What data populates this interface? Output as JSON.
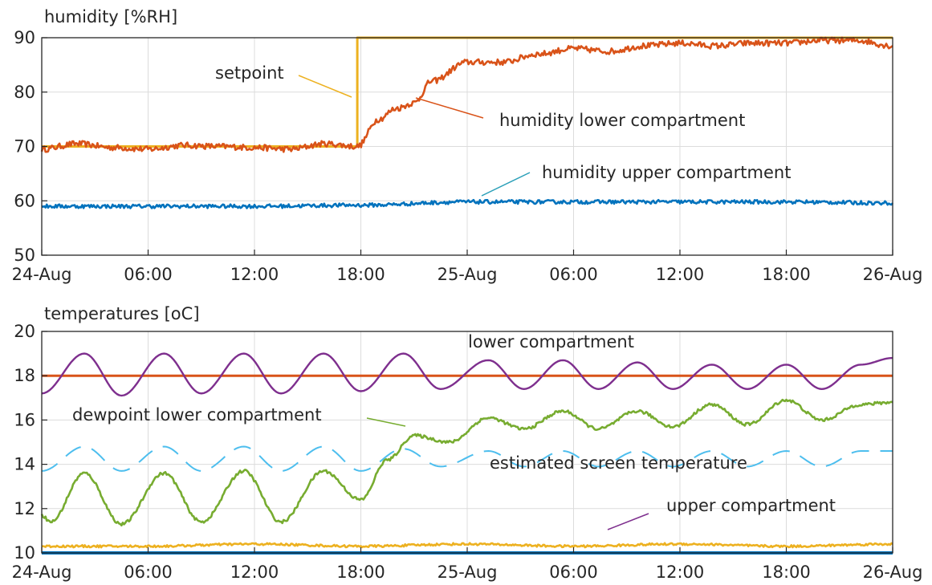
{
  "chart_data": [
    {
      "type": "line",
      "title": "humidity [%RH]",
      "xlabel": "",
      "ylabel": "",
      "x_tick_labels": [
        "24-Aug",
        "06:00",
        "12:00",
        "18:00",
        "25-Aug",
        "06:00",
        "12:00",
        "18:00",
        "26-Aug"
      ],
      "x_ticks_hours": [
        0,
        6,
        12,
        18,
        24,
        30,
        36,
        42,
        48
      ],
      "xlim_hours": [
        0,
        48
      ],
      "ylim": [
        50,
        90
      ],
      "y_ticks": [
        50,
        60,
        70,
        80,
        90
      ],
      "grid": true,
      "colors": {
        "setpoint": "#EDB120",
        "humidity lower compartment": "#D95319",
        "humidity upper compartment": "#0072BD"
      },
      "series": [
        {
          "name": "setpoint",
          "x": [
            0,
            17.8,
            17.8,
            48
          ],
          "values": [
            70,
            70,
            90,
            90
          ]
        },
        {
          "name": "humidity lower compartment",
          "x": [
            0,
            2,
            4,
            6,
            8,
            10,
            12,
            14,
            16,
            17.8,
            19,
            20,
            21,
            22,
            24,
            26,
            28,
            30,
            32,
            34,
            36,
            38,
            40,
            42,
            44,
            46,
            48
          ],
          "values": [
            69.5,
            70.5,
            69.8,
            69.5,
            70.2,
            70.0,
            69.8,
            69.5,
            70.5,
            70.0,
            75.0,
            77.0,
            78.0,
            82.0,
            85.5,
            85.5,
            87.0,
            88.0,
            87.5,
            88.5,
            89.0,
            88.5,
            89.0,
            89.0,
            89.5,
            89.5,
            88.5
          ]
        },
        {
          "name": "humidity upper compartment",
          "x": [
            0,
            6,
            12,
            18,
            24,
            30,
            36,
            42,
            48
          ],
          "values": [
            59.0,
            59.0,
            59.0,
            59.2,
            59.8,
            59.8,
            59.8,
            59.8,
            59.6
          ]
        }
      ],
      "annotations": [
        "setpoint",
        "humidity lower compartment",
        "humidity upper compartment"
      ]
    },
    {
      "type": "line",
      "title": "temperatures [oC]",
      "xlabel": "",
      "ylabel": "",
      "x_tick_labels": [
        "24-Aug",
        "06:00",
        "12:00",
        "18:00",
        "25-Aug",
        "06:00",
        "12:00",
        "18:00",
        "26-Aug"
      ],
      "x_ticks_hours": [
        0,
        6,
        12,
        18,
        24,
        30,
        36,
        42,
        48
      ],
      "xlim_hours": [
        0,
        48
      ],
      "ylim": [
        10,
        20
      ],
      "y_ticks": [
        10,
        12,
        14,
        16,
        18,
        20
      ],
      "grid": true,
      "colors": {
        "lower compartment": "#D95319",
        "upper compartment": "#0072BD",
        "air": "#7E2F8E",
        "dewpoint lower compartment": "#77AC30",
        "estimated screen temperature": "#4DBEEE",
        "outside": "#EDB120"
      },
      "series": [
        {
          "name": "lower compartment",
          "x": [
            0,
            48
          ],
          "values": [
            18,
            18
          ]
        },
        {
          "name": "upper compartment",
          "x": [
            0,
            48
          ],
          "values": [
            10.0,
            10.0
          ]
        },
        {
          "name": "",
          "x": [
            0,
            2.4,
            4.5,
            6.9,
            9.0,
            11.4,
            13.5,
            15.9,
            18.0,
            20.4,
            22.5,
            25.2,
            27.2,
            29.4,
            31.4,
            33.6,
            35.6,
            37.8,
            39.8,
            42.0,
            44.0,
            46.2,
            48.0
          ],
          "values": [
            17.2,
            19.0,
            17.1,
            19.0,
            17.2,
            19.0,
            17.2,
            19.0,
            17.3,
            19.0,
            17.4,
            18.7,
            17.4,
            18.7,
            17.4,
            18.6,
            17.4,
            18.5,
            17.4,
            18.5,
            17.4,
            18.5,
            18.8
          ]
        },
        {
          "name": "dewpoint lower compartment",
          "x": [
            0,
            0.5,
            2.4,
            4.5,
            6.9,
            9.0,
            11.4,
            13.5,
            15.9,
            18.0,
            19.5,
            21.0,
            23.0,
            25.2,
            27.2,
            29.4,
            31.4,
            33.6,
            35.6,
            37.8,
            39.8,
            42.0,
            44.0,
            46.2,
            48.0
          ],
          "values": [
            11.7,
            11.4,
            13.6,
            11.3,
            13.6,
            11.4,
            13.7,
            11.4,
            13.7,
            12.4,
            14.2,
            15.3,
            15.0,
            16.1,
            15.6,
            16.4,
            15.6,
            16.4,
            15.7,
            16.7,
            15.8,
            16.9,
            16.0,
            16.7,
            16.8
          ]
        },
        {
          "name": "estimated screen temperature",
          "x": [
            0,
            2.4,
            4.5,
            6.9,
            9.0,
            11.4,
            13.5,
            15.9,
            18.0,
            20.4,
            22.5,
            25.2,
            27.2,
            29.4,
            31.4,
            33.6,
            35.6,
            37.8,
            39.8,
            42.0,
            44.0,
            46.2,
            48.0
          ],
          "values": [
            13.7,
            14.8,
            13.7,
            14.8,
            13.7,
            14.8,
            13.7,
            14.8,
            13.7,
            14.7,
            13.9,
            14.6,
            13.9,
            14.6,
            13.9,
            14.6,
            13.9,
            14.6,
            13.9,
            14.6,
            13.9,
            14.6,
            14.6
          ]
        },
        {
          "name": "",
          "x": [
            0,
            6,
            12,
            18,
            24,
            30,
            36,
            42,
            48
          ],
          "values": [
            10.3,
            10.3,
            10.4,
            10.3,
            10.4,
            10.3,
            10.4,
            10.3,
            10.4
          ]
        }
      ],
      "annotations": [
        "lower compartment",
        "dewpoint lower compartment",
        "estimated screen temperature",
        "upper compartment"
      ]
    }
  ]
}
